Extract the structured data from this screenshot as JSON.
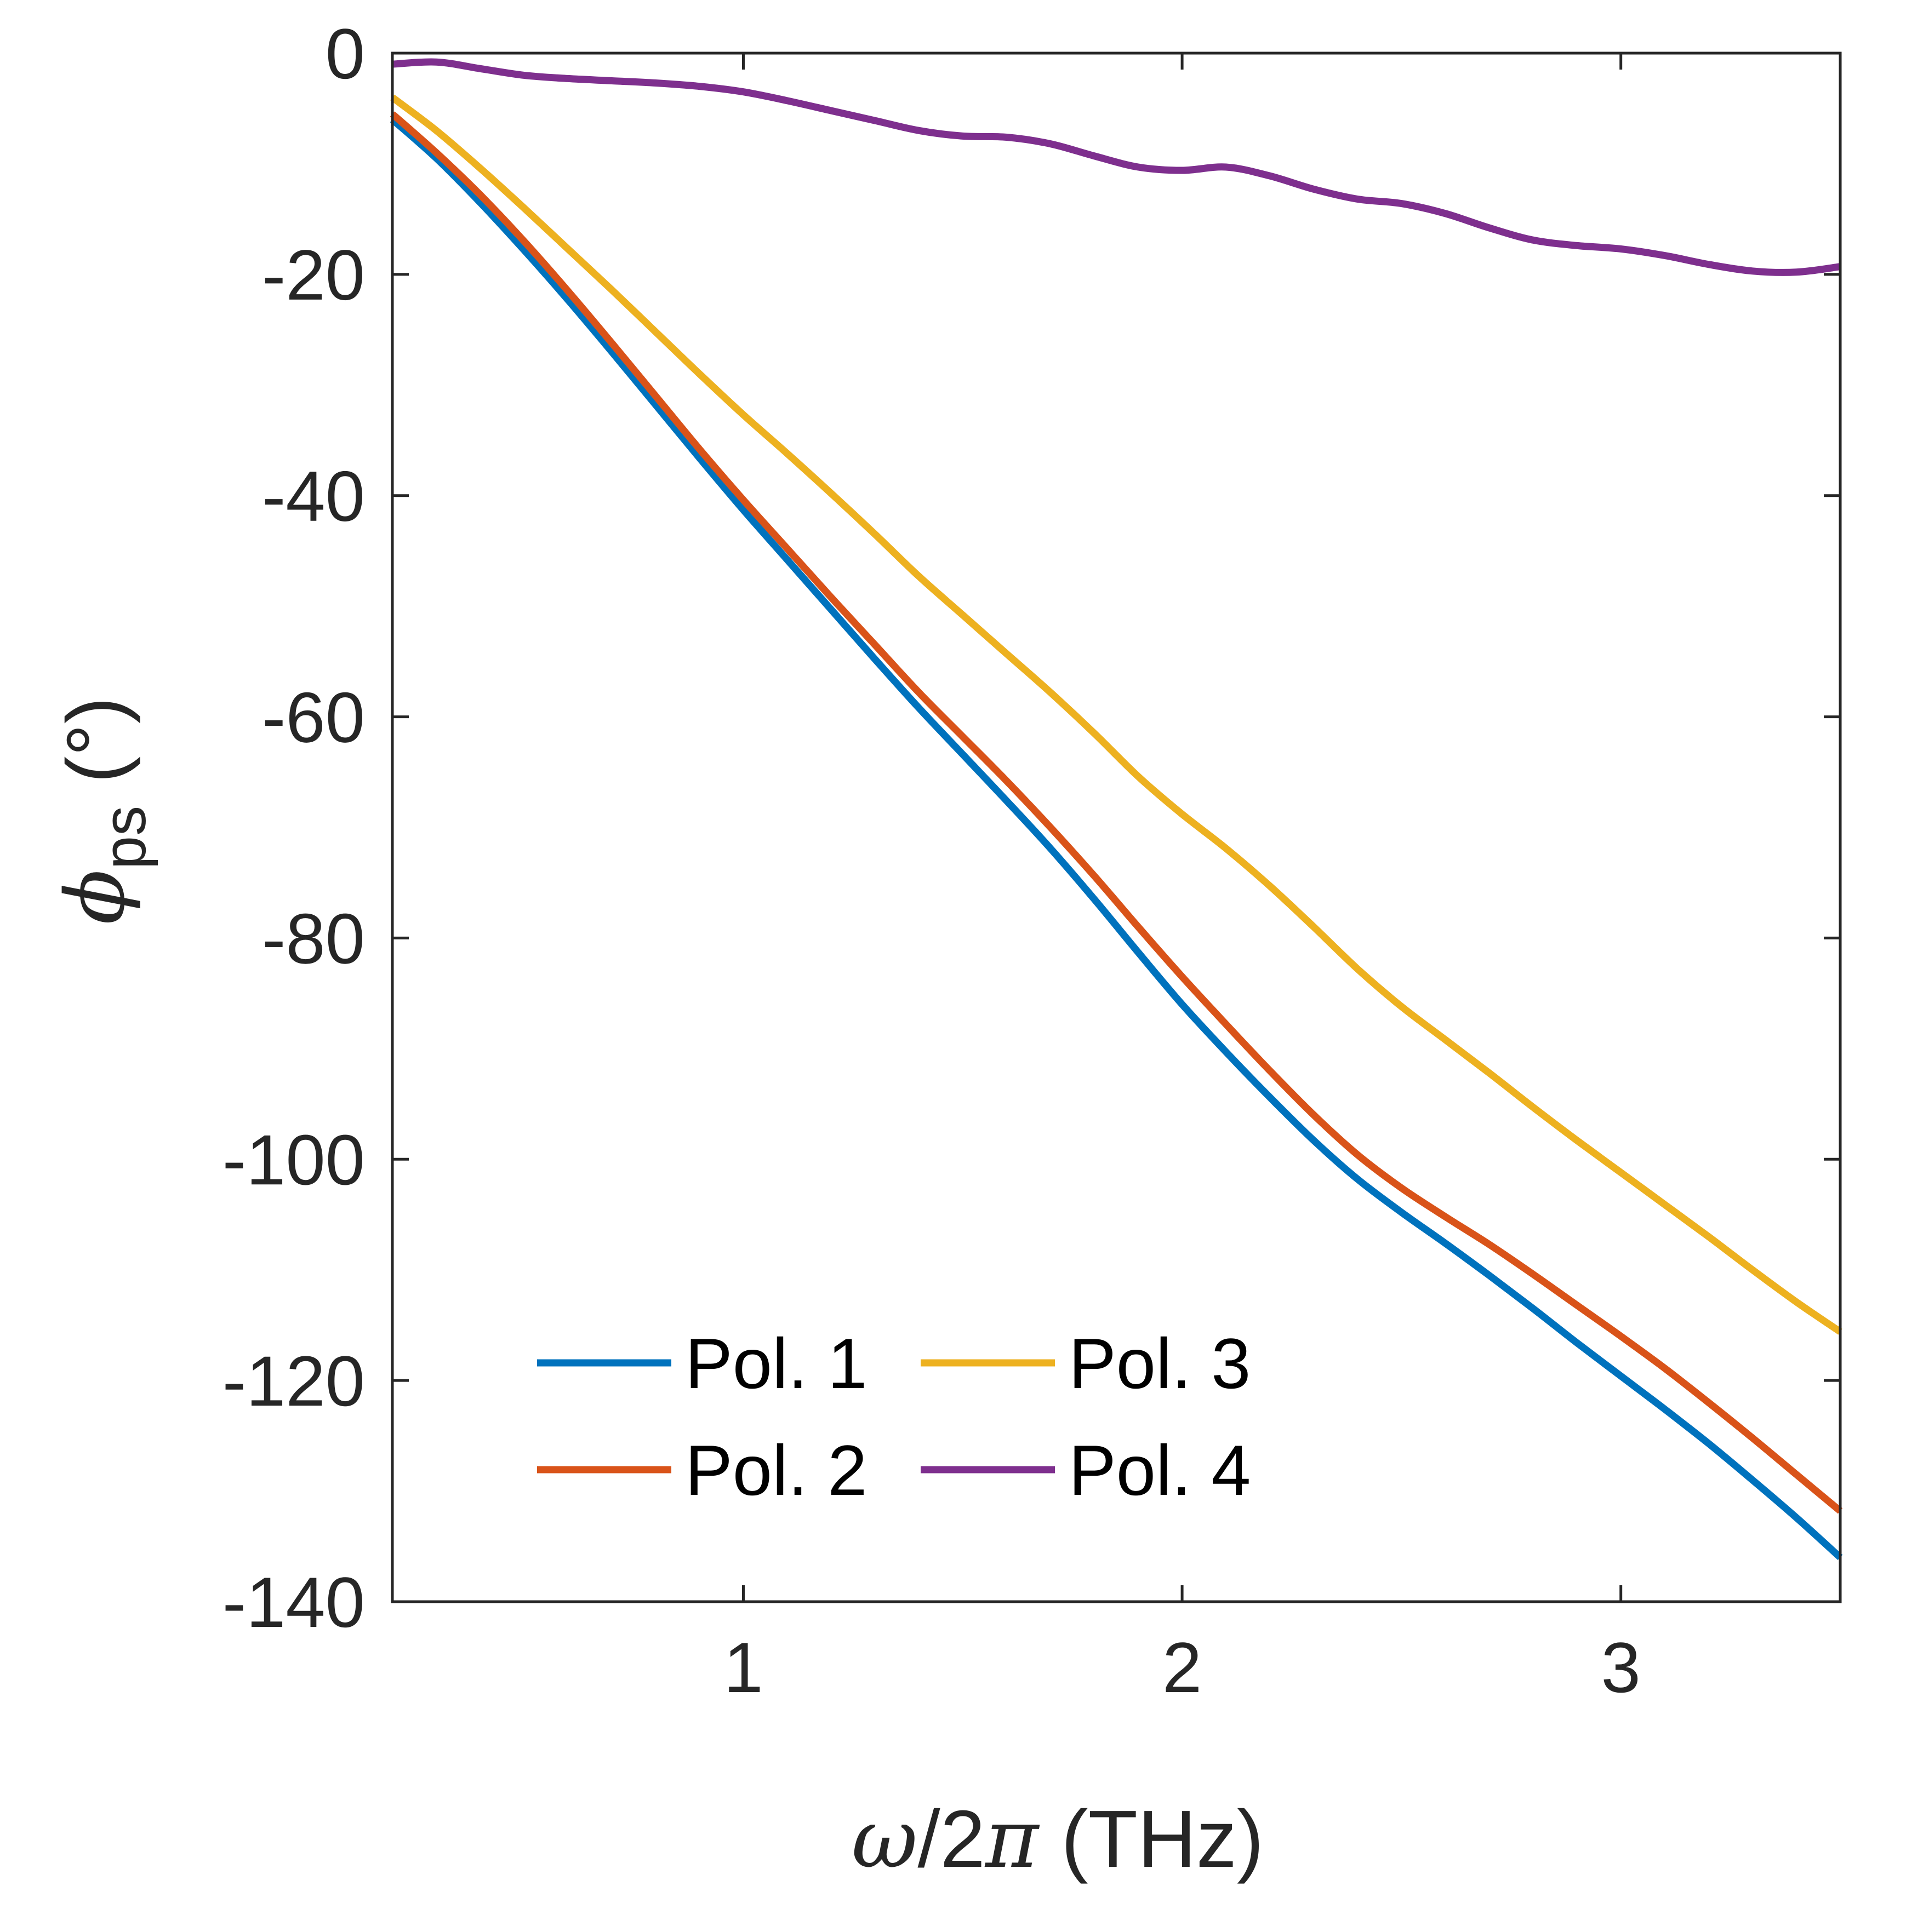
{
  "chart_data": {
    "type": "line",
    "title": "",
    "xlabel": {
      "symbol": "ω",
      "text": "/2",
      "symbol2": "π",
      "unit": " (THz)"
    },
    "ylabel": {
      "symbol": "ϕ",
      "subscript": "ps",
      "unit": " (°)"
    },
    "xlim": [
      0.2,
      3.5
    ],
    "ylim": [
      -140,
      0
    ],
    "xticks": [
      1,
      2,
      3
    ],
    "xtick_labels": [
      "1",
      "2",
      "3"
    ],
    "yticks": [
      0,
      -20,
      -40,
      -60,
      -80,
      -100,
      -120,
      -140
    ],
    "ytick_labels": [
      "0",
      "-20",
      "-40",
      "-60",
      "-80",
      "-100",
      "-120",
      "-140"
    ],
    "grid": false,
    "legend_position": "bottom-left",
    "legend_columns": 2,
    "x": [
      0.2,
      0.3,
      0.4,
      0.5,
      0.6,
      0.7,
      0.8,
      0.9,
      1.0,
      1.1,
      1.2,
      1.3,
      1.4,
      1.5,
      1.6,
      1.7,
      1.8,
      1.9,
      2.0,
      2.1,
      2.2,
      2.3,
      2.4,
      2.5,
      2.6,
      2.7,
      2.8,
      2.9,
      3.0,
      3.1,
      3.2,
      3.3,
      3.4,
      3.5
    ],
    "series": [
      {
        "name": "Pol. 1",
        "color": "#0072BD",
        "values": [
          -6,
          -9.5,
          -13.5,
          -17.8,
          -22.3,
          -27,
          -31.8,
          -36.6,
          -41.3,
          -45.8,
          -50.3,
          -54.8,
          -59.2,
          -63.4,
          -67.6,
          -71.9,
          -76.5,
          -81.3,
          -86,
          -90.3,
          -94.4,
          -98.3,
          -101.8,
          -104.8,
          -107.6,
          -110.5,
          -113.5,
          -116.6,
          -119.6,
          -122.6,
          -125.7,
          -129,
          -132.4,
          -136
        ]
      },
      {
        "name": "Pol. 2",
        "color": "#D95319",
        "values": [
          -5.5,
          -9,
          -12.8,
          -17,
          -21.5,
          -26.2,
          -31,
          -35.8,
          -40.4,
          -44.8,
          -49.2,
          -53.5,
          -57.8,
          -61.8,
          -65.8,
          -70,
          -74.4,
          -79,
          -83.5,
          -87.8,
          -92,
          -96,
          -99.6,
          -102.6,
          -105.2,
          -107.7,
          -110.4,
          -113.2,
          -116,
          -118.9,
          -122,
          -125.2,
          -128.5,
          -131.8
        ]
      },
      {
        "name": "Pol. 3",
        "color": "#EDB120",
        "values": [
          -4,
          -7,
          -10.4,
          -14,
          -17.7,
          -21.4,
          -25.2,
          -29,
          -32.7,
          -36.2,
          -39.8,
          -43.5,
          -47.3,
          -50.8,
          -54.3,
          -57.8,
          -61.5,
          -65.4,
          -68.8,
          -71.9,
          -75.3,
          -79,
          -82.8,
          -86.2,
          -89.2,
          -92.2,
          -95.3,
          -98.3,
          -101.2,
          -104.1,
          -107,
          -110,
          -112.9,
          -115.6
        ]
      },
      {
        "name": "Pol. 4",
        "color": "#7E2F8E",
        "values": [
          -1,
          -0.8,
          -1.4,
          -2,
          -2.3,
          -2.5,
          -2.7,
          -3,
          -3.5,
          -4.3,
          -5.2,
          -6.1,
          -7,
          -7.5,
          -7.6,
          -8.2,
          -9.3,
          -10.3,
          -10.6,
          -10.3,
          -11.1,
          -12.3,
          -13.2,
          -13.6,
          -14.5,
          -15.8,
          -16.9,
          -17.4,
          -17.7,
          -18.3,
          -19.1,
          -19.7,
          -19.8,
          -19.3
        ]
      }
    ]
  }
}
